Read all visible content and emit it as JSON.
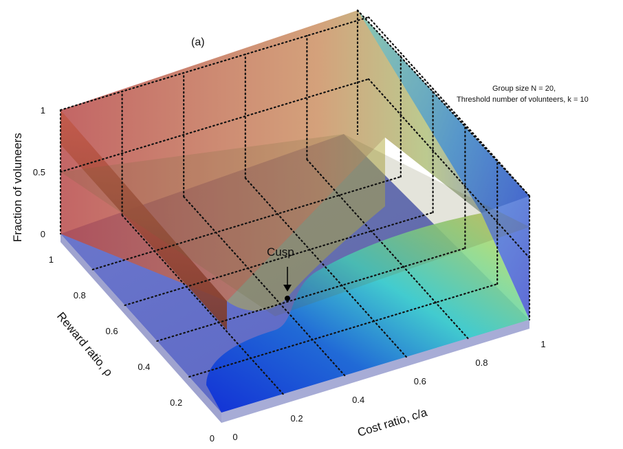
{
  "chart_data": {
    "type": "surface",
    "panel_label": "(a)",
    "annotation": "Group size N = 20,\nThreshold number of volunteers, k = 10",
    "annotation_lines": [
      "Group size N = 20,",
      "Threshold number of volunteers, k = 10"
    ],
    "zlabel": "Fraction of voluneers",
    "ylabel": "Reward ratio, ρ",
    "xlabel": "Cost ratio, c/a",
    "x_ticks": [
      "0",
      "0.2",
      "0.4",
      "0.6",
      "0.8",
      "1"
    ],
    "y_ticks": [
      "0",
      "0.2",
      "0.4",
      "0.6",
      "0.8",
      "1"
    ],
    "z_ticks": [
      "0",
      "0.5",
      "1"
    ],
    "xlim": [
      0,
      1
    ],
    "ylim": [
      0,
      1
    ],
    "zlim": [
      0,
      1
    ],
    "cusp_label": "Cusp",
    "cusp_point": {
      "x": 0.32,
      "y": 0.55,
      "z": 0.5
    },
    "colormap": "jet",
    "colors": {
      "low": "#0a1fd6",
      "mid": "#3fd6c8",
      "high": "#d23a2a",
      "floor": "#5a66c8"
    },
    "grid": true
  }
}
